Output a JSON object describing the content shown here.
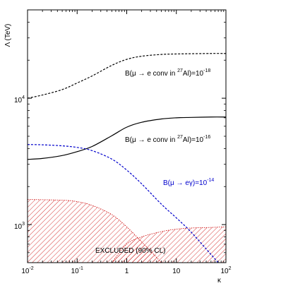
{
  "chart_data": {
    "type": "line",
    "xlabel": "κ",
    "ylabel": "Λ (TeV)",
    "xscale": "log",
    "yscale": "log",
    "xlim": [
      0.01,
      100
    ],
    "ylim": [
      500,
      50000
    ],
    "grid": false,
    "x_ticks": [
      {
        "value": 0.01,
        "base": "10",
        "exp": "-2"
      },
      {
        "value": 0.1,
        "base": "10",
        "exp": "-1"
      },
      {
        "value": 1,
        "base": "1",
        "exp": ""
      },
      {
        "value": 10,
        "base": "10",
        "exp": ""
      },
      {
        "value": 100,
        "base": "10",
        "exp": "2"
      }
    ],
    "y_ticks": [
      {
        "value": 1000,
        "base": "10",
        "exp": "3"
      },
      {
        "value": 10000,
        "base": "10",
        "exp": "4"
      }
    ],
    "series": [
      {
        "style": "dashed",
        "color": "#000000",
        "x": [
          0.01,
          0.02,
          0.05,
          0.1,
          0.2,
          0.5,
          1,
          2,
          5,
          10,
          20,
          50,
          100
        ],
        "y": [
          10000,
          10600,
          11700,
          13200,
          15000,
          18200,
          20300,
          21500,
          22200,
          22400,
          22500,
          22600,
          22600
        ]
      },
      {
        "style": "solid",
        "color": "#000000",
        "x": [
          0.01,
          0.02,
          0.05,
          0.1,
          0.2,
          0.5,
          1,
          2,
          5,
          10,
          20,
          50,
          100
        ],
        "y": [
          3280,
          3340,
          3520,
          3780,
          4150,
          5050,
          5900,
          6450,
          6850,
          7000,
          7050,
          7100,
          7100
        ]
      },
      {
        "style": "dashed",
        "color": "#0000cc",
        "x": [
          0.01,
          0.02,
          0.05,
          0.1,
          0.2,
          0.5,
          1,
          2,
          5,
          10,
          20,
          50,
          70
        ],
        "y": [
          4300,
          4280,
          4200,
          4080,
          3850,
          3300,
          2700,
          2100,
          1450,
          1130,
          870,
          580,
          500
        ]
      }
    ],
    "excluded_regions": [
      {
        "color": "#cc0000",
        "x": [
          0.01,
          0.05,
          0.1,
          0.2,
          0.5,
          1,
          2,
          3,
          5
        ],
        "y": [
          1580,
          1560,
          1520,
          1420,
          1200,
          960,
          730,
          620,
          500
        ]
      },
      {
        "color": "#cc0000",
        "x": [
          0.5,
          1,
          2,
          5,
          10,
          20,
          50,
          100
        ],
        "y": [
          500,
          700,
          800,
          880,
          920,
          940,
          950,
          960
        ]
      }
    ],
    "annotations": [
      {
        "id": "dashed-black",
        "text_parts": [
          "B(μ → e conv in ",
          "27",
          "Al)=10",
          "-18"
        ],
        "color": "#000000"
      },
      {
        "id": "solid-black",
        "text_parts": [
          "B(μ → e conv in ",
          "27",
          "Al)=10",
          "-16"
        ],
        "color": "#000000"
      },
      {
        "id": "dashed-blue",
        "text_parts": [
          "B(μ → eγ)=10",
          "-14"
        ],
        "color": "#0000cc"
      }
    ],
    "excluded_label": "EXCLUDED (90% CL)"
  }
}
